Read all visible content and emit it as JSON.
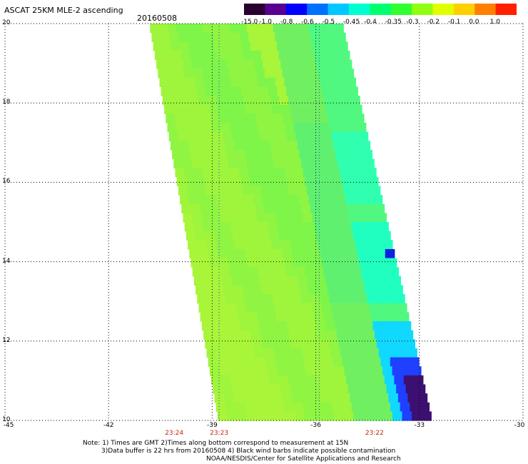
{
  "title": "ASCAT 25KM MLE-2 ascending",
  "date": "20160508",
  "colorbar": {
    "labels": [
      "-15.0",
      "-1.0",
      "-0.8",
      "-0.6",
      "-0.5",
      "-0.45",
      "-0.4",
      "-0.35",
      "-0.3",
      "-0.2",
      "-0.1",
      "0.0",
      "1.0"
    ],
    "colors": [
      "#2a0030",
      "#5a0090",
      "#0000ff",
      "#0070ff",
      "#00c8ff",
      "#00ffd0",
      "#00ff70",
      "#30ff30",
      "#90ff10",
      "#e0ff00",
      "#ffd000",
      "#ff8000",
      "#ff2000"
    ]
  },
  "map": {
    "lat_labels": [
      "20",
      "18",
      "16",
      "14",
      "12",
      "10"
    ],
    "lon_labels": [
      "-45",
      "-42",
      "-39",
      "-36",
      "-33",
      "-30"
    ],
    "time_labels": [
      {
        "text": "23:24",
        "lon": -40.1
      },
      {
        "text": "23:23",
        "lon": -38.8
      },
      {
        "text": "23:22",
        "lon": -34.3
      }
    ],
    "swath": {
      "top_left_lon": -40.8,
      "top_right_lon": -35.2,
      "top_lat": 20.0,
      "bottom_left_lon": -38.8,
      "bottom_right_lon": -32.6,
      "bottom_lat": 10.0
    }
  },
  "notes": {
    "line1": "Note: 1) Times are GMT 2)Times along bottom correspond to measurement at 15N",
    "line2": "3)Data buffer is 22 hrs from 20160508 4) Black wind barbs indicate possible contamination",
    "line3": "NOAA/NESDIS/Center for Satellite Applications and Research"
  }
}
